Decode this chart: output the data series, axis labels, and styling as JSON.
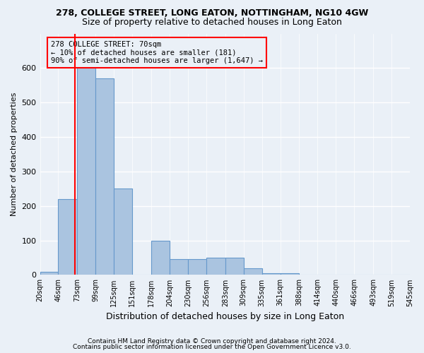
{
  "title1": "278, COLLEGE STREET, LONG EATON, NOTTINGHAM, NG10 4GW",
  "title2": "Size of property relative to detached houses in Long Eaton",
  "xlabel": "Distribution of detached houses by size in Long Eaton",
  "ylabel": "Number of detached properties",
  "footer1": "Contains HM Land Registry data © Crown copyright and database right 2024.",
  "footer2": "Contains public sector information licensed under the Open Government Licence v3.0.",
  "bin_labels": [
    "20sqm",
    "46sqm",
    "73sqm",
    "99sqm",
    "125sqm",
    "151sqm",
    "178sqm",
    "204sqm",
    "230sqm",
    "256sqm",
    "283sqm",
    "309sqm",
    "335sqm",
    "361sqm",
    "388sqm",
    "414sqm",
    "440sqm",
    "466sqm",
    "493sqm",
    "519sqm",
    "545sqm"
  ],
  "bar_values": [
    10,
    220,
    625,
    570,
    250,
    0,
    100,
    45,
    45,
    50,
    50,
    20,
    5,
    5,
    0,
    0,
    0,
    0,
    0,
    0
  ],
  "bin_edges": [
    20,
    46,
    73,
    99,
    125,
    151,
    178,
    204,
    230,
    256,
    283,
    309,
    335,
    361,
    388,
    414,
    440,
    466,
    493,
    519,
    545
  ],
  "bar_color": "#aac4e0",
  "bar_edge_color": "#6699cc",
  "property_line_x": 70,
  "annotation_text1": "278 COLLEGE STREET: 70sqm",
  "annotation_text2": "← 10% of detached houses are smaller (181)",
  "annotation_text3": "90% of semi-detached houses are larger (1,647) →",
  "ylim": [
    0,
    700
  ],
  "yticks": [
    0,
    100,
    200,
    300,
    400,
    500,
    600
  ],
  "bg_color": "#eaf0f7",
  "grid_color": "#d0dce8"
}
